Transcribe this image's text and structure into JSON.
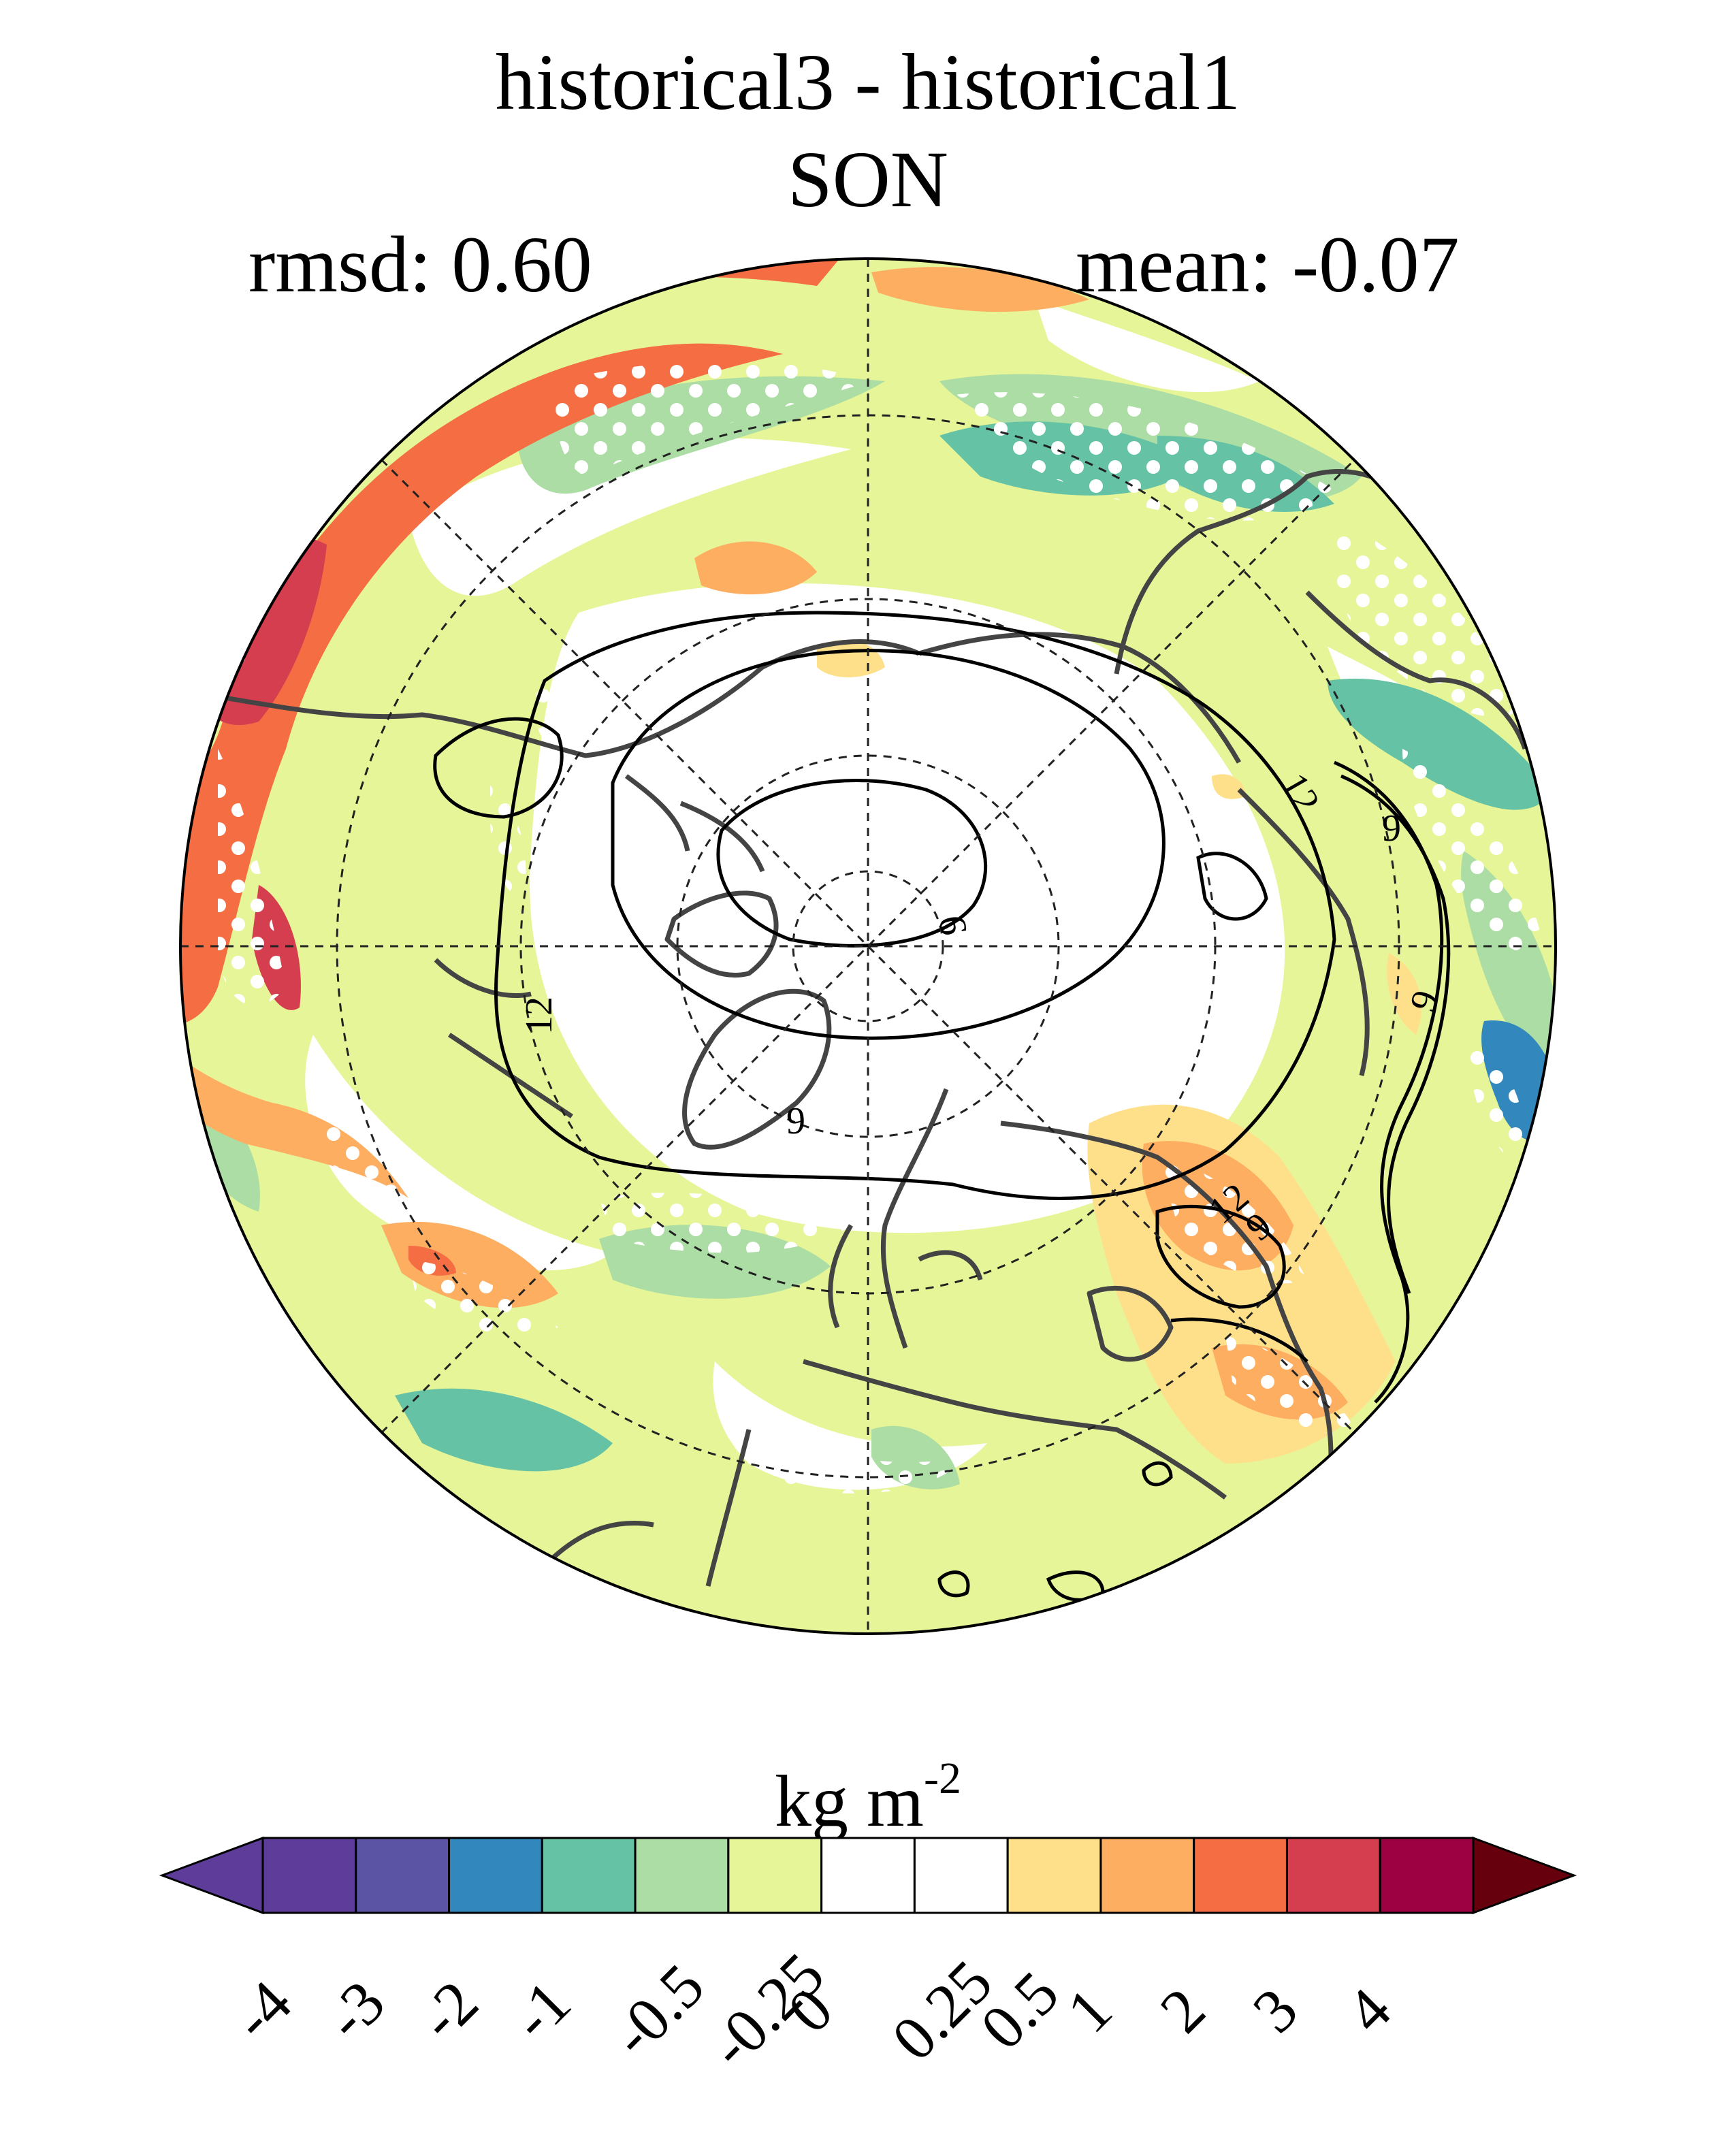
{
  "figure": {
    "title_line1": "historical3 - historical1",
    "title_line2": "SON",
    "rmsd_label": "rmsd: 0.60",
    "mean_label": "mean: -0.07"
  },
  "map": {
    "projection": "north polar stereographic",
    "contour_labels": [
      "12",
      "9",
      "9",
      "12",
      "9",
      "9",
      "12",
      "9"
    ],
    "stippling": "significance dots (white)"
  },
  "colorbar": {
    "units_base": "kg m",
    "units_exp": "-2",
    "ticks": [
      "-4",
      "-3",
      "-2",
      "-1",
      "-0.5",
      "-0.25",
      "0",
      "0.25",
      "0.5",
      "1",
      "2",
      "3",
      "4"
    ],
    "colors": [
      "#5e3c99",
      "#5b53a4",
      "#3288bd",
      "#66c2a5",
      "#abdda4",
      "#e6f598",
      "#ffffff",
      "#ffffff",
      "#fee08b",
      "#fdae61",
      "#f46d43",
      "#d53e4f",
      "#9e0142"
    ],
    "under_color": "#5e3c99",
    "over_color": "#67000d"
  },
  "chart_data": {
    "type": "heatmap",
    "title": "historical3 - historical1 SON",
    "variable_units": "kg m^-2",
    "rmsd": 0.6,
    "mean": -0.07,
    "levels": [
      -4,
      -3,
      -2,
      -1,
      -0.5,
      -0.25,
      0,
      0.25,
      0.5,
      1,
      2,
      3,
      4
    ],
    "colorbar_extend": "both"
  }
}
